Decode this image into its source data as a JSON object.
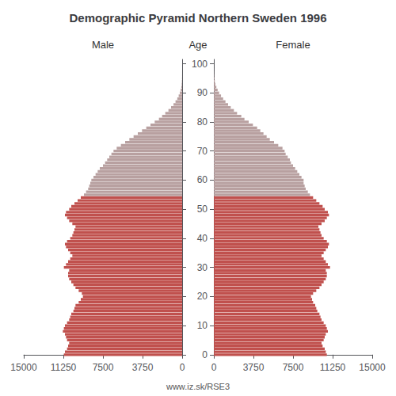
{
  "chart_data": {
    "type": "bar",
    "orientation": "horizontal",
    "title": "Demographic Pyramid Northern Sweden 1996",
    "ylabel": "Age",
    "annotations": [
      "www.iz.sk/RSE3"
    ],
    "grid": false,
    "xlim": [
      0,
      15000
    ],
    "xticks": [
      0,
      3750,
      7500,
      11250,
      15000
    ],
    "ylim": [
      -0.6,
      101.5
    ],
    "yticks": [
      0,
      10,
      20,
      30,
      40,
      50,
      60,
      70,
      80,
      90,
      100
    ],
    "y": [
      0,
      1,
      2,
      3,
      4,
      5,
      6,
      7,
      8,
      9,
      10,
      11,
      12,
      13,
      14,
      15,
      16,
      17,
      18,
      19,
      20,
      21,
      22,
      23,
      24,
      25,
      26,
      27,
      28,
      29,
      30,
      31,
      32,
      33,
      34,
      35,
      36,
      37,
      38,
      39,
      40,
      41,
      42,
      43,
      44,
      45,
      46,
      47,
      48,
      49,
      50,
      51,
      52,
      53,
      54,
      55,
      56,
      57,
      58,
      59,
      60,
      61,
      62,
      63,
      64,
      65,
      66,
      67,
      68,
      69,
      70,
      71,
      72,
      73,
      74,
      75,
      76,
      77,
      78,
      79,
      80,
      81,
      82,
      83,
      84,
      85,
      86,
      87,
      88,
      89,
      90,
      91,
      92,
      93,
      94,
      95,
      96,
      97,
      98,
      99,
      100
    ],
    "colors": [
      "#C0504D",
      "#C0504D",
      "#C0504D",
      "#C0504D",
      "#C0504D",
      "#C0504D",
      "#C0504D",
      "#C0504D",
      "#C0504D",
      "#C0504D",
      "#C0504D",
      "#C0504D",
      "#C0504D",
      "#C0504D",
      "#C0504D",
      "#C0504D",
      "#C0504D",
      "#C0504D",
      "#C0504D",
      "#C0504D",
      "#C0504D",
      "#C0504D",
      "#C0504D",
      "#C0504D",
      "#C0504D",
      "#C0504D",
      "#C0504D",
      "#C0504D",
      "#C0504D",
      "#C0504D",
      "#C0504D",
      "#C0504D",
      "#C0504D",
      "#C0504D",
      "#C0504D",
      "#C0504D",
      "#C0504D",
      "#C0504D",
      "#C0504D",
      "#C0504D",
      "#C0504D",
      "#C0504D",
      "#C0504D",
      "#C0504D",
      "#C0504D",
      "#C0504D",
      "#C0504D",
      "#C0504D",
      "#C0504D",
      "#C0504D",
      "#C0504D",
      "#C0504D",
      "#C0504D",
      "#C0504D",
      "#C0504D",
      "#B8A0A0",
      "#B8A0A0",
      "#B8A0A0",
      "#B8A0A0",
      "#B8A0A0",
      "#B8A0A0",
      "#B8A0A0",
      "#B8A0A0",
      "#B8A0A0",
      "#B8A0A0",
      "#B8A0A0",
      "#B8A0A0",
      "#B8A0A0",
      "#B8A0A0",
      "#B8A0A0",
      "#B8A0A0",
      "#B8A0A0",
      "#B8A0A0",
      "#B8A0A0",
      "#B8A0A0",
      "#B8A0A0",
      "#B8A0A0",
      "#B8A0A0",
      "#B8A0A0",
      "#B8A0A0",
      "#B8A0A0",
      "#B8A0A0",
      "#B8A0A0",
      "#B8A0A0",
      "#B8A0A0",
      "#B8A0A0",
      "#B8A0A0",
      "#B8A0A0",
      "#B8A0A0",
      "#B8A0A0",
      "#B8A0A0",
      "#B8A0A0",
      "#B8A0A0",
      "#B8A0A0",
      "#B8A0A0",
      "#B8A0A0",
      "#B8A0A0",
      "#B8A0A0",
      "#B8A0A0",
      "#B8A0A0",
      "#B8A0A0"
    ],
    "series": [
      {
        "name": "Male",
        "values": [
          11200,
          11100,
          10900,
          10800,
          10700,
          10900,
          11000,
          11100,
          11300,
          11200,
          11100,
          10900,
          10700,
          10600,
          10500,
          10300,
          10200,
          10100,
          9800,
          9600,
          9400,
          9500,
          9800,
          10100,
          10300,
          10500,
          10700,
          10800,
          10800,
          10700,
          11200,
          11000,
          10800,
          10600,
          10400,
          10600,
          10800,
          11000,
          11100,
          10900,
          10600,
          10400,
          10300,
          10200,
          10100,
          10400,
          10700,
          10900,
          11100,
          11000,
          10700,
          10500,
          10200,
          9900,
          9600,
          9300,
          9100,
          8900,
          8800,
          8700,
          8600,
          8400,
          8200,
          8000,
          7800,
          7500,
          7300,
          7100,
          6900,
          6700,
          6500,
          6200,
          5800,
          5400,
          5000,
          4600,
          4200,
          3800,
          3400,
          3000,
          2600,
          2200,
          1900,
          1600,
          1300,
          1050,
          820,
          630,
          460,
          330,
          220,
          140,
          80,
          45,
          25,
          13,
          7,
          4,
          2,
          1,
          0
        ]
      },
      {
        "name": "Female",
        "values": [
          10700,
          10600,
          10500,
          10300,
          10200,
          10400,
          10500,
          10600,
          10800,
          10700,
          10600,
          10400,
          10200,
          10100,
          10000,
          9800,
          9700,
          9600,
          9400,
          9300,
          9200,
          9400,
          9700,
          10000,
          10200,
          10400,
          10600,
          10700,
          10700,
          10600,
          11000,
          10800,
          10600,
          10400,
          10200,
          10400,
          10600,
          10800,
          10900,
          10700,
          10400,
          10200,
          10100,
          10000,
          9900,
          10200,
          10500,
          10700,
          10900,
          10800,
          10500,
          10300,
          10000,
          9700,
          9400,
          9100,
          8900,
          8700,
          8600,
          8500,
          8500,
          8300,
          8100,
          7900,
          7700,
          7500,
          7300,
          7200,
          7000,
          6800,
          6700,
          6500,
          6100,
          5700,
          5300,
          5000,
          4700,
          4400,
          4100,
          3700,
          3300,
          2900,
          2600,
          2200,
          1900,
          1600,
          1350,
          1100,
          880,
          680,
          500,
          360,
          240,
          150,
          90,
          50,
          25,
          13,
          7,
          3,
          1
        ]
      }
    ]
  }
}
